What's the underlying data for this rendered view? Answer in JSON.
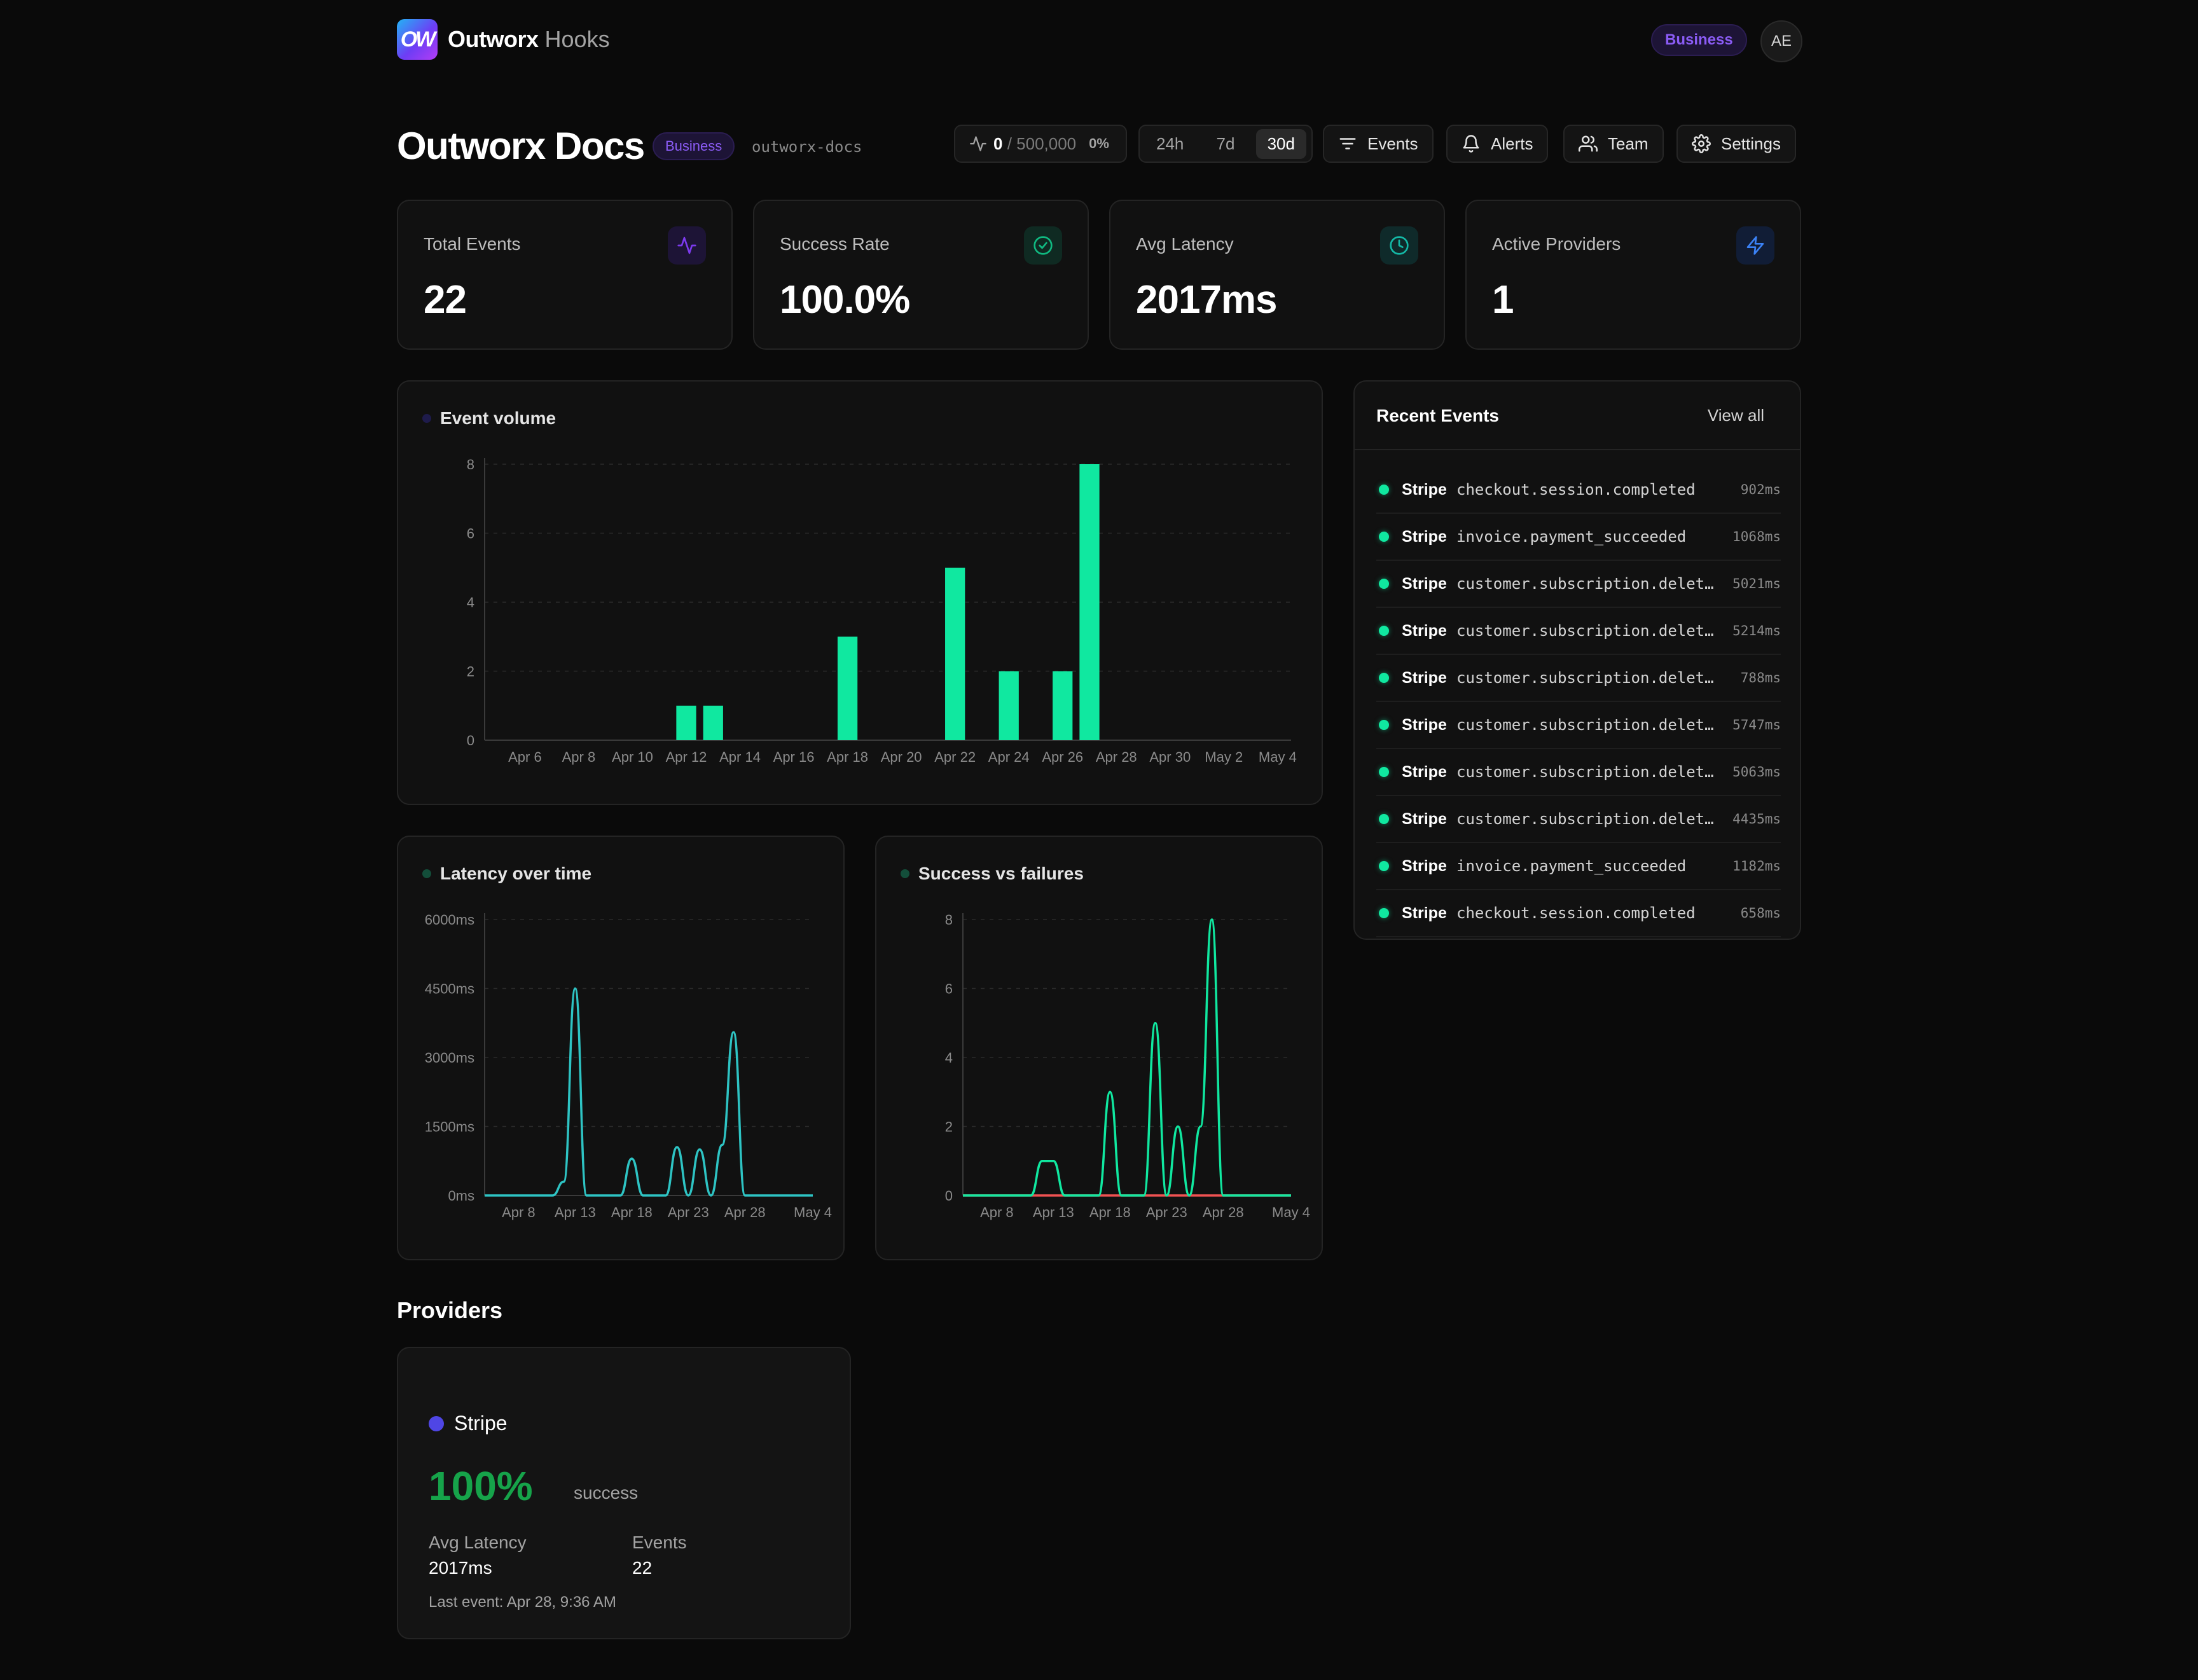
{
  "topbar": {
    "logo_text": "OW",
    "brand_strong": "Outworx",
    "brand_light": "Hooks",
    "plan_badge": "Business",
    "avatar_initials": "AE"
  },
  "header": {
    "title": "Outworx Docs",
    "badge": "Business",
    "slug": "outworx-docs",
    "usage_used": "0",
    "usage_limit": "/ 500,000",
    "usage_pct": "0%",
    "ranges": [
      "24h",
      "7d",
      "30d"
    ],
    "active_range": "30d",
    "nav": {
      "events": "Events",
      "alerts": "Alerts",
      "team": "Team",
      "settings": "Settings"
    }
  },
  "stats": [
    {
      "label": "Total Events",
      "value": "22",
      "icon": "activity-icon",
      "color": "#7c3aed"
    },
    {
      "label": "Success Rate",
      "value": "100.0%",
      "icon": "check-circle-icon",
      "color": "#10b981"
    },
    {
      "label": "Avg Latency",
      "value": "2017ms",
      "icon": "clock-icon",
      "color": "#14b8a6"
    },
    {
      "label": "Active Providers",
      "value": "1",
      "icon": "zap-icon",
      "color": "#3b82f6"
    }
  ],
  "chart_data": [
    {
      "type": "bar",
      "title": "Event volume",
      "color": "#10e8a0",
      "ylim": [
        0,
        8
      ],
      "yticks": [
        "0",
        "2",
        "4",
        "6",
        "8"
      ],
      "xtick_labels": [
        "Apr 6",
        "Apr 8",
        "Apr 10",
        "Apr 12",
        "Apr 14",
        "Apr 16",
        "Apr 18",
        "Apr 20",
        "Apr 22",
        "Apr 24",
        "Apr 26",
        "Apr 28",
        "Apr 30",
        "May 2",
        "May 4"
      ],
      "categories": [
        "Apr 5",
        "Apr 6",
        "Apr 7",
        "Apr 8",
        "Apr 9",
        "Apr 10",
        "Apr 11",
        "Apr 12",
        "Apr 13",
        "Apr 14",
        "Apr 15",
        "Apr 16",
        "Apr 17",
        "Apr 18",
        "Apr 19",
        "Apr 20",
        "Apr 21",
        "Apr 22",
        "Apr 23",
        "Apr 24",
        "Apr 25",
        "Apr 26",
        "Apr 27",
        "Apr 28",
        "Apr 29",
        "Apr 30",
        "May 1",
        "May 2",
        "May 3",
        "May 4"
      ],
      "values": [
        0,
        0,
        0,
        0,
        0,
        0,
        0,
        1,
        1,
        0,
        0,
        0,
        0,
        3,
        0,
        0,
        0,
        5,
        0,
        2,
        0,
        2,
        8,
        0,
        0,
        0,
        0,
        0,
        0,
        0
      ],
      "grid": true
    },
    {
      "type": "line",
      "title": "Latency over time",
      "color": "#2ec4c4",
      "ylim": [
        0,
        6000
      ],
      "yticks": [
        "0ms",
        "1500ms",
        "3000ms",
        "4500ms",
        "6000ms"
      ],
      "xtick_labels": [
        "Apr 8",
        "Apr 13",
        "Apr 18",
        "Apr 23",
        "Apr 28",
        "May 4"
      ],
      "x": [
        "Apr 5",
        "Apr 6",
        "Apr 7",
        "Apr 8",
        "Apr 9",
        "Apr 10",
        "Apr 11",
        "Apr 12",
        "Apr 13",
        "Apr 14",
        "Apr 15",
        "Apr 16",
        "Apr 17",
        "Apr 18",
        "Apr 19",
        "Apr 20",
        "Apr 21",
        "Apr 22",
        "Apr 23",
        "Apr 24",
        "Apr 25",
        "Apr 26",
        "Apr 27",
        "Apr 28",
        "Apr 29",
        "Apr 30",
        "May 1",
        "May 2",
        "May 3",
        "May 4"
      ],
      "values": [
        0,
        0,
        0,
        0,
        0,
        0,
        0,
        300,
        4500,
        0,
        0,
        0,
        0,
        800,
        0,
        0,
        0,
        1050,
        0,
        1000,
        0,
        1100,
        3550,
        0,
        0,
        0,
        0,
        0,
        0,
        0
      ],
      "grid": true
    },
    {
      "type": "line",
      "title": "Success vs failures",
      "ylim": [
        0,
        8
      ],
      "yticks": [
        "0",
        "2",
        "4",
        "6",
        "8"
      ],
      "xtick_labels": [
        "Apr 8",
        "Apr 13",
        "Apr 18",
        "Apr 23",
        "Apr 28",
        "May 4"
      ],
      "x": [
        "Apr 5",
        "Apr 6",
        "Apr 7",
        "Apr 8",
        "Apr 9",
        "Apr 10",
        "Apr 11",
        "Apr 12",
        "Apr 13",
        "Apr 14",
        "Apr 15",
        "Apr 16",
        "Apr 17",
        "Apr 18",
        "Apr 19",
        "Apr 20",
        "Apr 21",
        "Apr 22",
        "Apr 23",
        "Apr 24",
        "Apr 25",
        "Apr 26",
        "Apr 27",
        "Apr 28",
        "Apr 29",
        "Apr 30",
        "May 1",
        "May 2",
        "May 3",
        "May 4"
      ],
      "series": [
        {
          "color": "#10e8a0",
          "values": [
            0,
            0,
            0,
            0,
            0,
            0,
            0,
            1,
            1,
            0,
            0,
            0,
            0,
            3,
            0,
            0,
            0,
            5,
            0,
            2,
            0,
            2,
            8,
            0,
            0,
            0,
            0,
            0,
            0,
            0
          ]
        },
        {
          "color": "#f05252",
          "values": [
            0,
            0,
            0,
            0,
            0,
            0,
            0,
            0,
            0,
            0,
            0,
            0,
            0,
            0,
            0,
            0,
            0,
            0,
            0,
            0,
            0,
            0,
            0,
            0,
            0,
            0,
            0,
            0,
            0,
            0
          ]
        }
      ],
      "grid": true
    }
  ],
  "recent_events": {
    "title": "Recent Events",
    "view_all": "View all",
    "items": [
      {
        "provider": "Stripe",
        "event": "checkout.session.completed",
        "latency": "902ms"
      },
      {
        "provider": "Stripe",
        "event": "invoice.payment_succeeded",
        "latency": "1068ms"
      },
      {
        "provider": "Stripe",
        "event": "customer.subscription.deleted",
        "latency": "5021ms"
      },
      {
        "provider": "Stripe",
        "event": "customer.subscription.deleted",
        "latency": "5214ms"
      },
      {
        "provider": "Stripe",
        "event": "customer.subscription.deleted",
        "latency": "788ms"
      },
      {
        "provider": "Stripe",
        "event": "customer.subscription.deleted",
        "latency": "5747ms"
      },
      {
        "provider": "Stripe",
        "event": "customer.subscription.deleted",
        "latency": "5063ms"
      },
      {
        "provider": "Stripe",
        "event": "customer.subscription.deleted",
        "latency": "4435ms"
      },
      {
        "provider": "Stripe",
        "event": "invoice.payment_succeeded",
        "latency": "1182ms"
      },
      {
        "provider": "Stripe",
        "event": "checkout.session.completed",
        "latency": "658ms"
      }
    ]
  },
  "providers": {
    "heading": "Providers",
    "items": [
      {
        "name": "Stripe",
        "success_pct": "100%",
        "success_label": "success",
        "avg_latency_label": "Avg Latency",
        "avg_latency": "2017ms",
        "events_label": "Events",
        "events": "22",
        "last_event": "Last event: Apr 28, 9:36 AM"
      }
    ]
  }
}
